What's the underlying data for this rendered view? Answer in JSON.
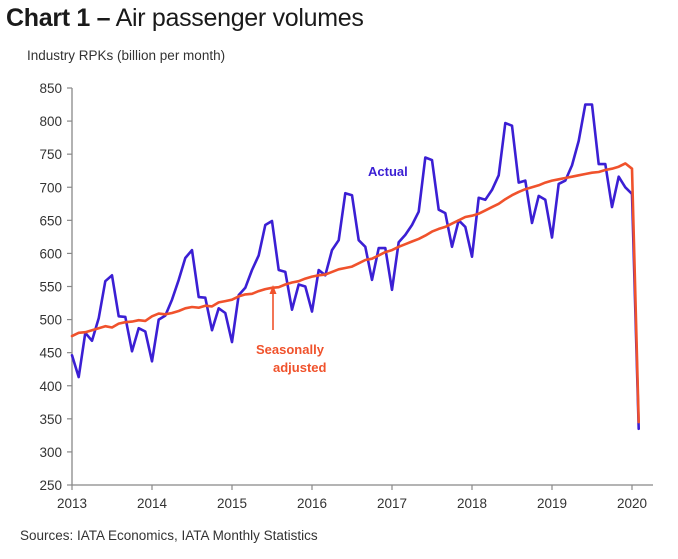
{
  "chart_data": {
    "type": "line",
    "title_bold": "Chart 1 –",
    "title_rest": "Air passenger volumes",
    "ylabel": "Industry RPKs (billion per month)",
    "xlabel": "",
    "source": "Sources: IATA Economics, IATA Monthly Statistics",
    "ylim": [
      250,
      850
    ],
    "yticks": [
      250,
      300,
      350,
      400,
      450,
      500,
      550,
      600,
      650,
      700,
      750,
      800,
      850
    ],
    "xlim": [
      2013,
      2020.3
    ],
    "xticks": [
      "2013",
      "2014",
      "2015",
      "2016",
      "2017",
      "2018",
      "2019",
      "2020"
    ],
    "x_start": "2013-01",
    "x_step": "monthly",
    "grid": false,
    "legend": "inline-annotations",
    "colors": {
      "actual": "#3b1fd4",
      "seasonally_adjusted": "#f0522c",
      "axis": "#888888"
    },
    "series": [
      {
        "name": "Actual",
        "label": "Actual",
        "values": [
          446,
          413,
          480,
          468,
          502,
          558,
          567,
          505,
          504,
          452,
          487,
          482,
          437,
          500,
          506,
          530,
          560,
          593,
          605,
          534,
          533,
          484,
          517,
          510,
          466,
          537,
          548,
          575,
          597,
          643,
          649,
          575,
          572,
          515,
          553,
          550,
          512,
          575,
          567,
          605,
          620,
          691,
          688,
          620,
          610,
          560,
          608,
          608,
          545,
          617,
          628,
          643,
          663,
          745,
          741,
          666,
          661,
          610,
          650,
          640,
          595,
          684,
          681,
          696,
          718,
          797,
          793,
          707,
          710,
          646,
          687,
          681,
          624,
          705,
          710,
          733,
          770,
          825,
          825,
          735,
          735,
          670,
          716,
          700,
          690,
          335
        ]
      },
      {
        "name": "Seasonally adjusted",
        "label_line1": "Seasonally",
        "label_line2": "adjusted",
        "values": [
          475,
          480,
          481,
          484,
          487,
          490,
          488,
          494,
          496,
          497,
          499,
          498,
          505,
          509,
          508,
          510,
          513,
          517,
          519,
          518,
          521,
          520,
          526,
          528,
          530,
          535,
          538,
          539,
          543,
          546,
          548,
          549,
          553,
          556,
          558,
          562,
          565,
          567,
          568,
          572,
          576,
          578,
          580,
          585,
          590,
          592,
          597,
          602,
          605,
          610,
          614,
          618,
          622,
          627,
          633,
          637,
          640,
          645,
          650,
          655,
          657,
          660,
          665,
          670,
          675,
          682,
          688,
          693,
          697,
          700,
          703,
          707,
          710,
          712,
          714,
          716,
          718,
          720,
          722,
          723,
          726,
          728,
          731,
          736,
          728,
          345
        ]
      }
    ]
  }
}
